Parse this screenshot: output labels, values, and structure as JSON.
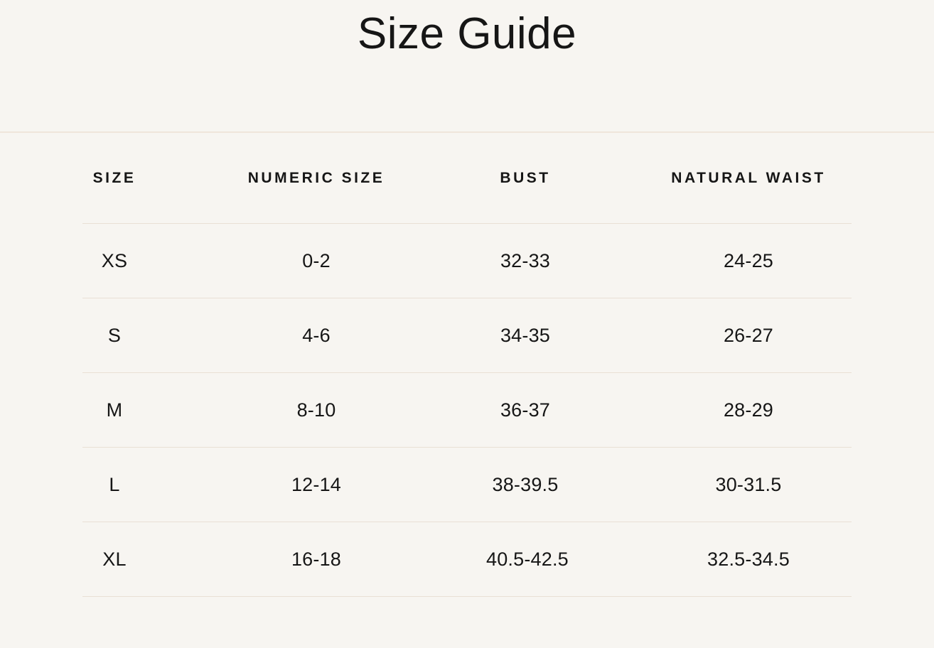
{
  "page": {
    "title": "Size Guide"
  },
  "size_table": {
    "columns": [
      "SIZE",
      "NUMERIC SIZE",
      "BUST",
      "NATURAL WAIST"
    ],
    "rows": [
      {
        "size": "XS",
        "numeric_size": "0-2",
        "bust": "32-33",
        "natural_waist": "24-25"
      },
      {
        "size": "S",
        "numeric_size": "4-6",
        "bust": "34-35",
        "natural_waist": "26-27"
      },
      {
        "size": "M",
        "numeric_size": "8-10",
        "bust": "36-37",
        "natural_waist": "28-29"
      },
      {
        "size": "L",
        "numeric_size": "12-14",
        "bust": "38-39.5",
        "natural_waist": "30-31.5"
      },
      {
        "size": "XL",
        "numeric_size": "16-18",
        "bust": "40.5-42.5",
        "natural_waist": "32.5-34.5"
      }
    ]
  },
  "colors": {
    "background": "#f7f5f1",
    "text": "#161616",
    "divider": "#e9e0d5",
    "divider_strong": "#efe6db"
  }
}
